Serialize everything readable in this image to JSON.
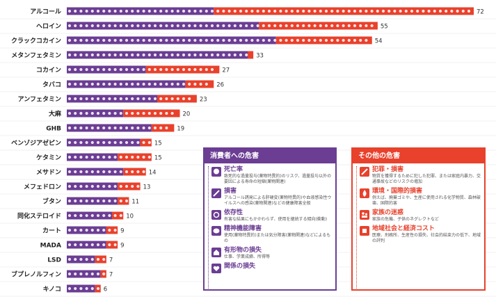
{
  "chart_data": {
    "type": "bar",
    "stacked": true,
    "categories": [
      "アルコール",
      "ヘロイン",
      "クラックコカイン",
      "メタンフェタミン",
      "コカイン",
      "タバコ",
      "アンフェタミン",
      "大麻",
      "GHB",
      "ベンゾジアゼピン",
      "ケタミン",
      "メサドン",
      "メフェドロン",
      "ブタン",
      "同化ステロイド",
      "カート",
      "MADA",
      "LSD",
      "ブプレノルフィン",
      "キノコ"
    ],
    "series": [
      {
        "name": "消費者への危害",
        "values": [
          26,
          34,
          37,
          32,
          14,
          21,
          16,
          10,
          15,
          13,
          9,
          10,
          9,
          9,
          8,
          7,
          7,
          5,
          6,
          5
        ]
      },
      {
        "name": "その他の危害",
        "values": [
          46,
          21,
          17,
          1,
          13,
          5,
          7,
          10,
          4,
          2,
          6,
          4,
          4,
          2,
          2,
          2,
          2,
          2,
          1,
          1
        ]
      }
    ],
    "totals": [
      72,
      55,
      54,
      33,
      27,
      26,
      23,
      20,
      19,
      15,
      15,
      14,
      13,
      11,
      10,
      9,
      9,
      7,
      7,
      6
    ],
    "colors": {
      "user_harm": "#6b3d93",
      "other_harm": "#e8412c"
    },
    "xlim": [
      0,
      72
    ]
  },
  "legend_user": {
    "title": "消費者への危害",
    "items": [
      {
        "icon": "skull-icon",
        "title": "死亡率",
        "desc": "致死的な過量投与(薬物特異的)のリスク、過量投与以外の要因による寿命の短縮(薬物関連)"
      },
      {
        "icon": "syringe-icon",
        "title": "損害",
        "desc": "アルコール誘発による肝硬変(薬物特異的)や血液感染性ウイルスへの感染(薬物関連)などの健康障害全般"
      },
      {
        "icon": "link-icon",
        "title": "依存性",
        "desc": "有害な結果にもかかわらず、使用を継続する傾向(衝動)"
      },
      {
        "icon": "brain-icon",
        "title": "精神機能障害",
        "desc": "使用(薬物特異的)または気分障害(薬物関連)などによるもの"
      },
      {
        "icon": "broken-house-icon",
        "title": "有形物の損失",
        "desc": "仕事、学業成績、所得等"
      },
      {
        "icon": "broken-heart-icon",
        "title": "関係の損失",
        "desc": ""
      }
    ]
  },
  "legend_other": {
    "title": "その他の危害",
    "items": [
      {
        "icon": "knife-icon",
        "title": "犯罪・損害",
        "desc": "物質を獲得するために犯した犯罪、または家庭内暴力、交通事故などのリスクの増加"
      },
      {
        "icon": "flame-icon",
        "title": "環境・国際的損害",
        "desc": "例えば、廃棄ゴミや、生産に使用される化学物質、森林破壊、国際的害"
      },
      {
        "icon": "family-icon",
        "title": "家族の迷惑",
        "desc": "家族の危機、子供のネグレクトなど"
      },
      {
        "icon": "coin-icon",
        "title": "地域社会と経済コスト",
        "desc": "医療、刑務所、生産性の損失、社会的結束力の低下、地域の評判"
      }
    ]
  }
}
